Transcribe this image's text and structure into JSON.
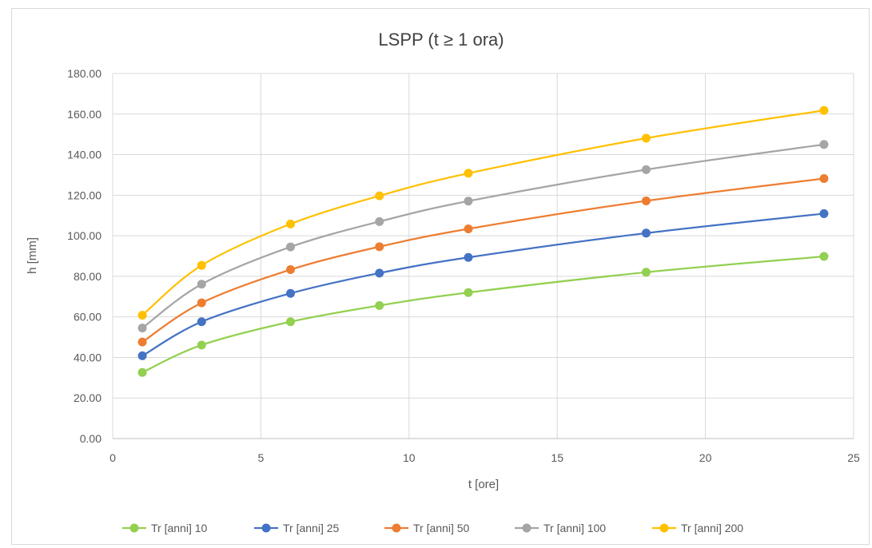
{
  "chart_data": {
    "type": "line",
    "title": "LSPP (t ≥ 1 ora)",
    "xlabel": "t [ore]",
    "ylabel": "h [mm]",
    "xlim": [
      0,
      25
    ],
    "ylim": [
      0,
      180
    ],
    "x_ticks": [
      "0",
      "5",
      "10",
      "15",
      "20",
      "25"
    ],
    "y_ticks": [
      "0.00",
      "20.00",
      "40.00",
      "60.00",
      "80.00",
      "100.00",
      "120.00",
      "140.00",
      "160.00",
      "180.00"
    ],
    "grid": true,
    "smooth": true,
    "legend_position": "bottom",
    "x": [
      1,
      3,
      6,
      9,
      12,
      18,
      24
    ],
    "series": [
      {
        "name": "Tr [anni] 10",
        "color": "#92d050",
        "values": [
          32.6,
          46.1,
          57.6,
          65.6,
          72.0,
          82.0,
          89.8
        ]
      },
      {
        "name": "Tr [anni] 25",
        "color": "#4472c4",
        "values": [
          40.8,
          57.6,
          71.6,
          81.6,
          89.3,
          101.3,
          110.9
        ]
      },
      {
        "name": "Tr [anni] 50",
        "color": "#ed7d31",
        "values": [
          47.6,
          66.9,
          83.3,
          94.6,
          103.4,
          117.2,
          128.2
        ]
      },
      {
        "name": "Tr [anni] 100",
        "color": "#a5a5a5",
        "values": [
          54.5,
          76.1,
          94.5,
          107.0,
          117.1,
          132.6,
          145.0
        ]
      },
      {
        "name": "Tr [anni] 200",
        "color": "#ffc000",
        "values": [
          60.8,
          85.4,
          105.8,
          119.7,
          130.8,
          148.1,
          161.8
        ]
      }
    ]
  }
}
